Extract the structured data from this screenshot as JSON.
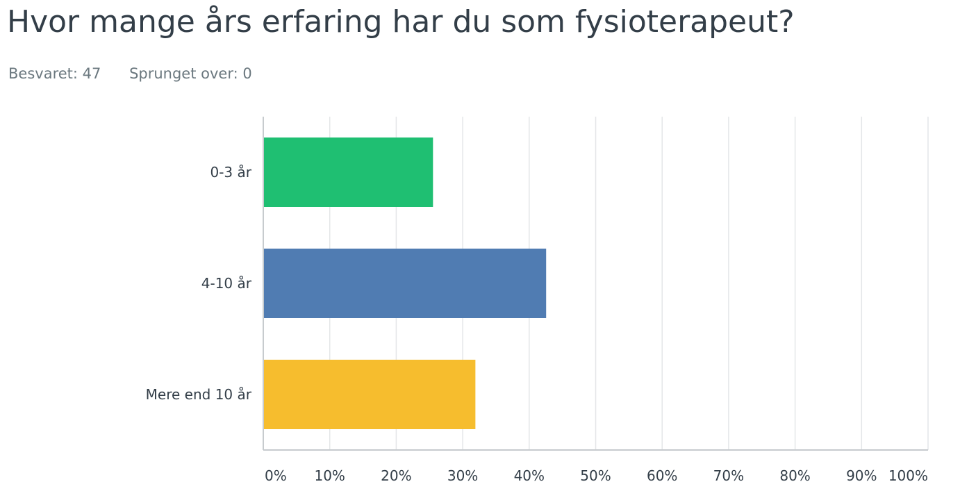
{
  "question": {
    "title": "Hvor mange års erfaring har du som fysioterapeut?"
  },
  "stats": {
    "answered": "Besvaret: 47",
    "skipped": "Sprunget over: 0"
  },
  "chart_data": {
    "type": "bar",
    "orientation": "horizontal",
    "categories": [
      "0-3 år",
      "4-10 år",
      "Mere end 10 år"
    ],
    "values": [
      25.53,
      42.55,
      31.91
    ],
    "unit": "%",
    "xlim": [
      0,
      100
    ],
    "x_ticks": [
      "0%",
      "10%",
      "20%",
      "30%",
      "40%",
      "50%",
      "60%",
      "70%",
      "80%",
      "90%",
      "100%"
    ],
    "colors": [
      "#1fbf72",
      "#507cb2",
      "#f6bd2e"
    ],
    "grid": true,
    "legend": false
  }
}
